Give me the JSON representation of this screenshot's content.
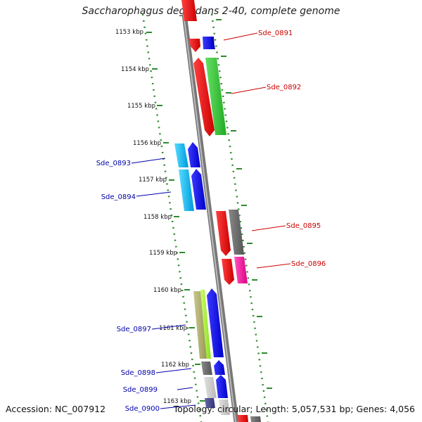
{
  "title": "Saccharophagus degradans 2-40, complete genome",
  "footer": {
    "accession": "Accession: NC_007912",
    "summary": "Topology: circular; Length: 5,057,531 bp; Genes: 4,056"
  },
  "ticks": [
    "1153 kbp",
    "1154 kbp",
    "1155 kbp",
    "1156 kbp",
    "1157 kbp",
    "1158 kbp",
    "1159 kbp",
    "1160 kbp",
    "1161 kbp",
    "1162 kbp",
    "1163 kbp"
  ],
  "gene_labels": [
    {
      "text": "Sde_0891",
      "color": "#cc0000"
    },
    {
      "text": "Sde_0892",
      "color": "#cc0000"
    },
    {
      "text": "Sde_0893",
      "color": "#0000aa"
    },
    {
      "text": "Sde_0894",
      "color": "#0000aa"
    },
    {
      "text": "Sde_0895",
      "color": "#cc0000"
    },
    {
      "text": "Sde_0896",
      "color": "#cc0000"
    },
    {
      "text": "Sde_0897",
      "color": "#0000aa"
    },
    {
      "text": "Sde_0898",
      "color": "#0000aa"
    },
    {
      "text": "Sde_0899",
      "color": "#0000aa"
    },
    {
      "text": "Sde_0900",
      "color": "#0000aa"
    }
  ],
  "colors": {
    "backbone": "#8a8a8a",
    "ruler_dots": "#2e8b2e",
    "forward_label": "#cc0000",
    "reverse_label": "#0000aa"
  }
}
